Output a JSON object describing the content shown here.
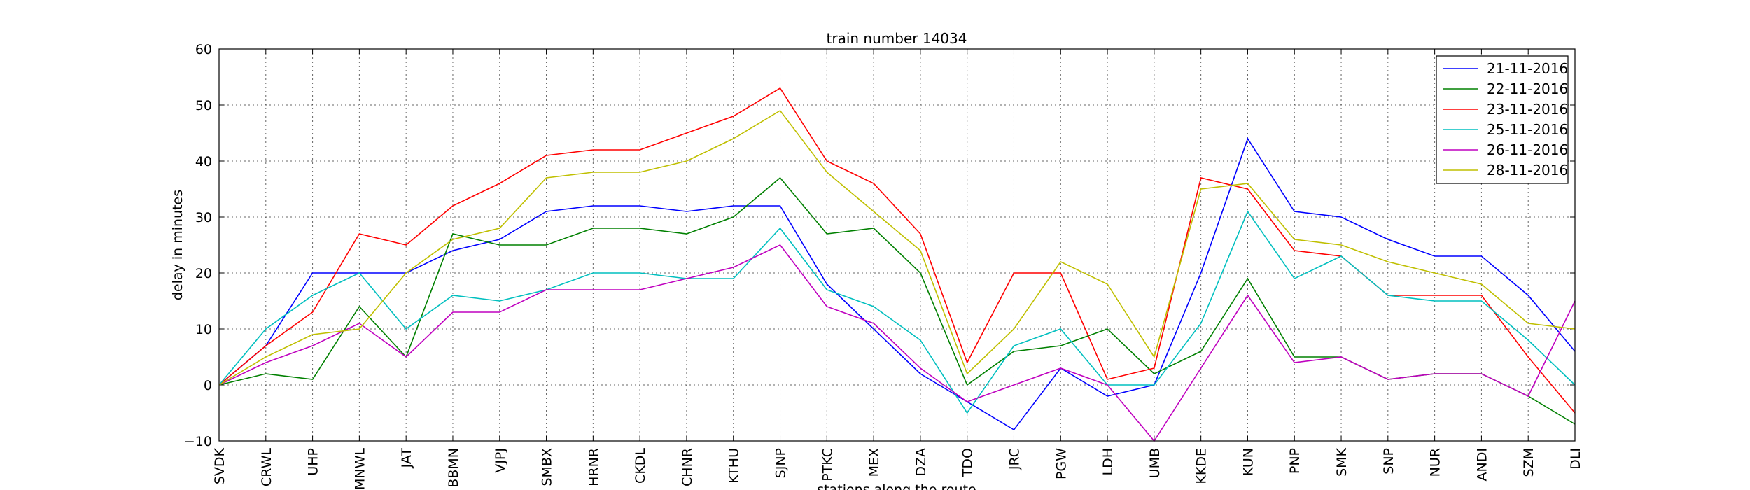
{
  "chart_data": {
    "type": "line",
    "title": "train number 14034",
    "xlabel": "stations along the route",
    "ylabel": "delay in minutes",
    "categories": [
      "SVDK",
      "CRWL",
      "UHP",
      "MNWL",
      "JAT",
      "BBMN",
      "VJPJ",
      "SMBX",
      "HRNR",
      "CKDL",
      "CHNR",
      "KTHU",
      "SJNP",
      "PTKC",
      "MEX",
      "DZA",
      "TDO",
      "JRC",
      "PGW",
      "LDH",
      "UMB",
      "KKDE",
      "KUN",
      "PNP",
      "SMK",
      "SNP",
      "NUR",
      "ANDI",
      "SZM",
      "DLI"
    ],
    "series": [
      {
        "name": "21-11-2016",
        "color": "#0000ff",
        "values": [
          0,
          7,
          20,
          20,
          20,
          24,
          26,
          31,
          32,
          32,
          31,
          32,
          32,
          18,
          10,
          2,
          -3,
          -8,
          3,
          -2,
          0,
          20,
          44,
          31,
          30,
          26,
          23,
          23,
          16,
          6
        ]
      },
      {
        "name": "22-11-2016",
        "color": "#008000",
        "values": [
          0,
          2,
          1,
          14,
          5,
          27,
          25,
          25,
          28,
          28,
          27,
          30,
          37,
          27,
          28,
          20,
          0,
          6,
          7,
          10,
          2,
          6,
          19,
          5,
          5,
          1,
          2,
          2,
          -2,
          -7
        ]
      },
      {
        "name": "23-11-2016",
        "color": "#ff0000",
        "values": [
          0,
          7,
          13,
          27,
          25,
          32,
          36,
          41,
          42,
          42,
          45,
          48,
          53,
          40,
          36,
          27,
          4,
          20,
          20,
          1,
          3,
          37,
          35,
          24,
          23,
          16,
          16,
          16,
          5,
          -5
        ]
      },
      {
        "name": "25-11-2016",
        "color": "#00bfbf",
        "values": [
          0,
          10,
          16,
          20,
          10,
          16,
          15,
          17,
          20,
          20,
          19,
          19,
          28,
          17,
          14,
          8,
          -5,
          7,
          10,
          0,
          0,
          11,
          31,
          19,
          23,
          16,
          15,
          15,
          8,
          0
        ]
      },
      {
        "name": "26-11-2016",
        "color": "#bf00bf",
        "values": [
          0,
          4,
          7,
          11,
          5,
          13,
          13,
          17,
          17,
          17,
          19,
          21,
          25,
          14,
          11,
          3,
          -3,
          0,
          3,
          0,
          -10,
          3,
          16,
          4,
          5,
          1,
          2,
          2,
          -2,
          15
        ]
      },
      {
        "name": "28-11-2016",
        "color": "#bfbf00",
        "values": [
          0,
          5,
          9,
          10,
          20,
          26,
          28,
          37,
          38,
          38,
          40,
          44,
          49,
          38,
          31,
          24,
          2,
          10,
          22,
          18,
          5,
          35,
          36,
          26,
          25,
          22,
          20,
          18,
          11,
          10
        ]
      }
    ],
    "ylim": [
      -10,
      60
    ],
    "yticks": [
      {
        "value": -10,
        "label": "−10"
      },
      0,
      10,
      20,
      30,
      40,
      50,
      60
    ],
    "grid": true,
    "legend": "upper right"
  }
}
